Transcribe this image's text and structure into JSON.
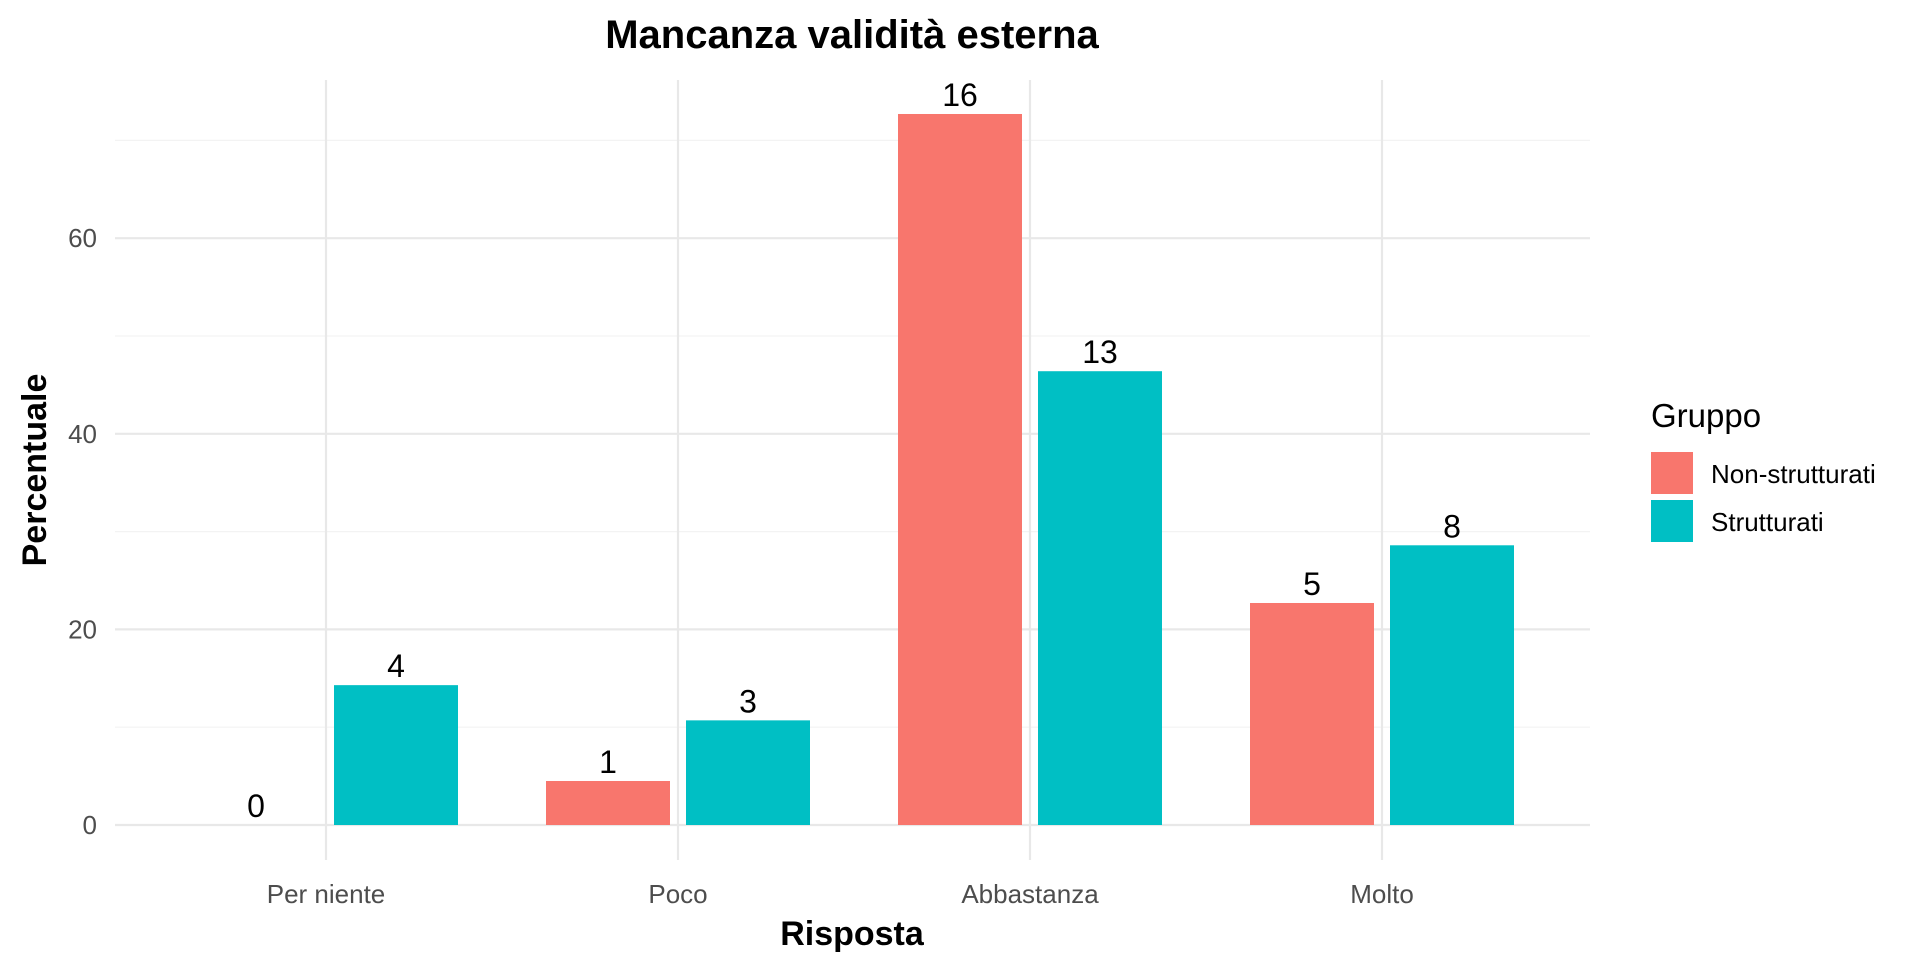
{
  "chart_data": {
    "type": "bar",
    "title": "Mancanza validità esterna",
    "xlabel": "Risposta",
    "ylabel": "Percentuale",
    "categories": [
      "Per niente",
      "Poco",
      "Abbastanza",
      "Molto"
    ],
    "ylim": [
      0,
      75
    ],
    "yticks": [
      0,
      20,
      40,
      60
    ],
    "grid": true,
    "legend": {
      "title": "Gruppo",
      "position": "right"
    },
    "series": [
      {
        "name": "Non-strutturati",
        "color": "#F8766D",
        "values": [
          0,
          4.5,
          72.7,
          22.7
        ],
        "labels": [
          "0",
          "1",
          "16",
          "5"
        ]
      },
      {
        "name": "Strutturati",
        "color": "#00BFC4",
        "values": [
          14.3,
          10.7,
          46.4,
          28.6
        ],
        "labels": [
          "4",
          "3",
          "13",
          "8"
        ]
      }
    ]
  }
}
